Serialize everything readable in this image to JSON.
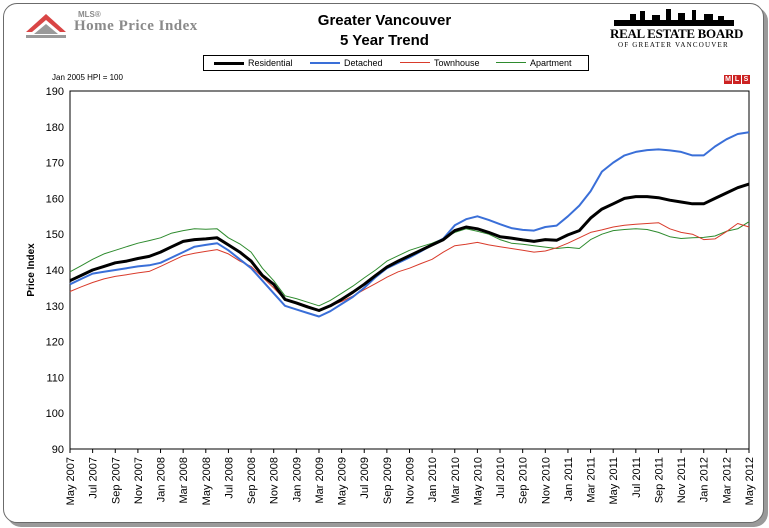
{
  "header": {
    "title_line1": "Greater Vancouver",
    "title_line2": "5 Year Trend",
    "left_logo_small": "MLS®",
    "left_logo_text": "Home Price Index",
    "right_logo_text": "REAL ESTATE BOARD",
    "right_logo_sub": "OF GREATER VANCOUVER"
  },
  "note": "Jan 2005 HPI = 100",
  "badge_letters": [
    "M",
    "L",
    "S"
  ],
  "colors": {
    "residential": "#000000",
    "detached": "#3a6fd8",
    "townhouse": "#d93b2b",
    "apartment": "#2e8b2e",
    "plot_background": "#ffffff",
    "grid": "#c8c8c8"
  },
  "chart_data": {
    "type": "line",
    "title": "Greater Vancouver 5 Year Trend",
    "ylabel": "Price Index",
    "xlabel": "",
    "ylim": [
      90,
      190
    ],
    "yticks": [
      90,
      100,
      110,
      120,
      130,
      140,
      150,
      160,
      170,
      180,
      190
    ],
    "grid": true,
    "legend_position": "top",
    "x": [
      "May 2007",
      "Jun 2007",
      "Jul 2007",
      "Aug 2007",
      "Sep 2007",
      "Oct 2007",
      "Nov 2007",
      "Dec 2007",
      "Jan 2008",
      "Feb 2008",
      "Mar 2008",
      "Apr 2008",
      "May 2008",
      "Jun 2008",
      "Jul 2008",
      "Aug 2008",
      "Sep 2008",
      "Oct 2008",
      "Nov 2008",
      "Dec 2008",
      "Jan 2009",
      "Feb 2009",
      "Mar 2009",
      "Apr 2009",
      "May 2009",
      "Jun 2009",
      "Jul 2009",
      "Aug 2009",
      "Sep 2009",
      "Oct 2009",
      "Nov 2009",
      "Dec 2009",
      "Jan 2010",
      "Feb 2010",
      "Mar 2010",
      "Apr 2010",
      "May 2010",
      "Jun 2010",
      "Jul 2010",
      "Aug 2010",
      "Sep 2010",
      "Oct 2010",
      "Nov 2010",
      "Dec 2010",
      "Jan 2011",
      "Feb 2011",
      "Mar 2011",
      "Apr 2011",
      "May 2011",
      "Jun 2011",
      "Jul 2011",
      "Aug 2011",
      "Sep 2011",
      "Oct 2011",
      "Nov 2011",
      "Dec 2011",
      "Jan 2012",
      "Feb 2012",
      "Mar 2012",
      "Apr 2012",
      "May 2012"
    ],
    "tick_labels": [
      "May 2007",
      "Jul 2007",
      "Sep 2007",
      "Nov 2007",
      "Jan 2008",
      "Mar 2008",
      "May 2008",
      "Jul 2008",
      "Sep 2008",
      "Nov 2008",
      "Jan 2009",
      "Mar 2009",
      "May 2009",
      "Jul 2009",
      "Sep 2009",
      "Nov 2009",
      "Jan 2010",
      "Mar 2010",
      "May 2010",
      "Jul 2010",
      "Sep 2010",
      "Nov 2010",
      "Jan 2011",
      "Mar 2011",
      "May 2011",
      "Jul 2011",
      "Sep 2011",
      "Nov 2011",
      "Jan 2012",
      "Mar 2012",
      "May 2012"
    ],
    "series": [
      {
        "name": "Residential",
        "color": "#000000",
        "values": [
          137,
          138.5,
          140,
          141,
          142,
          142.5,
          143.2,
          143.8,
          145,
          146.5,
          148,
          148.5,
          148.7,
          149,
          147,
          145,
          142.5,
          138.5,
          136,
          131.8,
          130.8,
          129.7,
          128.7,
          130,
          131.8,
          133.8,
          136,
          138.5,
          140.8,
          142.5,
          144,
          145.5,
          147,
          148.5,
          151,
          152,
          151.5,
          150.5,
          149.3,
          148.9,
          148.4,
          148,
          148.5,
          148.3,
          149.8,
          151,
          154.5,
          157,
          158.5,
          160,
          160.5,
          160.5,
          160.2,
          159.5,
          159,
          158.5,
          158.5,
          160,
          161.5,
          163,
          164
        ]
      },
      {
        "name": "Detached",
        "color": "#3a6fd8",
        "values": [
          136,
          137.5,
          139,
          139.5,
          140,
          140.5,
          141,
          141.3,
          142,
          143.5,
          145,
          146.5,
          147,
          147.5,
          145.5,
          143,
          140.5,
          137,
          133.5,
          130,
          129,
          128,
          127,
          128.5,
          130.5,
          132.5,
          135,
          138,
          140.5,
          142,
          143.5,
          145.2,
          147,
          148.8,
          152.5,
          154.2,
          155,
          154,
          152.8,
          151.7,
          151.2,
          151,
          152,
          152.4,
          155,
          158,
          162,
          167.5,
          170,
          172,
          173,
          173.5,
          173.7,
          173.4,
          173,
          172,
          172,
          174.5,
          176.5,
          178,
          178.5
        ]
      },
      {
        "name": "Townhouse",
        "color": "#d93b2b",
        "values": [
          134,
          135.3,
          136.5,
          137.5,
          138.2,
          138.7,
          139.2,
          139.6,
          141,
          142.5,
          144,
          144.7,
          145.2,
          145.7,
          144.5,
          142.5,
          141,
          138,
          135,
          131.7,
          131,
          130,
          128.8,
          130,
          131.2,
          132.7,
          134.5,
          136.2,
          138,
          139.5,
          140.5,
          141.8,
          143,
          145,
          146.8,
          147.2,
          147.7,
          147,
          146.5,
          146,
          145.5,
          145,
          145.3,
          146.2,
          147.5,
          149,
          150.5,
          151.2,
          152,
          152.5,
          152.8,
          153,
          153.2,
          151.5,
          150.5,
          150,
          148.5,
          148.7,
          150.7,
          153,
          152
        ]
      },
      {
        "name": "Apartment",
        "color": "#2e8b2e",
        "values": [
          139.5,
          141.2,
          143,
          144.5,
          145.5,
          146.5,
          147.5,
          148.2,
          149,
          150.3,
          151,
          151.5,
          151.4,
          151.5,
          149,
          147.3,
          145,
          140.5,
          137,
          132.8,
          132,
          131,
          130,
          131.5,
          133.5,
          135.5,
          137.8,
          140,
          142.5,
          144,
          145.5,
          146.5,
          147.5,
          148.8,
          150.5,
          151.5,
          150.8,
          150,
          148.5,
          147.5,
          147.2,
          146.8,
          146.4,
          146,
          146.3,
          146,
          148.5,
          150,
          151,
          151.3,
          151.5,
          151.3,
          150.5,
          149.3,
          148.8,
          149,
          149.1,
          149.5,
          150.8,
          151.5,
          153.5
        ]
      }
    ]
  }
}
